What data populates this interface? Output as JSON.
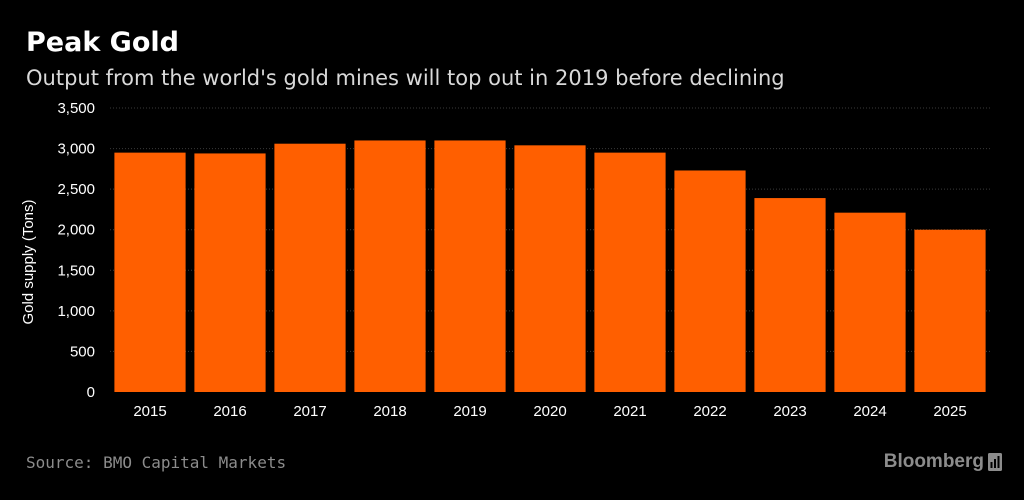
{
  "header": {
    "title": "Peak Gold",
    "subtitle": "Output from the world's gold mines will top out in 2019 before declining"
  },
  "footer": {
    "source": "Source: BMO Capital Markets",
    "brand": "Bloomberg",
    "brand_icon": "bloomberg-terminal-icon"
  },
  "colors": {
    "background": "#000000",
    "bar": "#ff5f00",
    "text": "#ffffff",
    "muted": "#8c8c8c",
    "grid": "#3a3a3a"
  },
  "chart_data": {
    "type": "bar",
    "title": "Peak Gold",
    "subtitle": "Output from the world's gold mines will top out in 2019 before declining",
    "xlabel": "",
    "ylabel": "Gold supply (Tons)",
    "categories": [
      "2015",
      "2016",
      "2017",
      "2018",
      "2019",
      "2020",
      "2021",
      "2022",
      "2023",
      "2024",
      "2025"
    ],
    "values": [
      2950,
      2940,
      3060,
      3100,
      3100,
      3040,
      2950,
      2730,
      2390,
      2210,
      2000
    ],
    "ylim": [
      0,
      3500
    ],
    "yticks": [
      0,
      500,
      1000,
      1500,
      2000,
      2500,
      3000,
      3500
    ],
    "ytick_labels": [
      "0",
      "500",
      "1,000",
      "1,500",
      "2,000",
      "2,500",
      "3,000",
      "3,500"
    ],
    "grid": true,
    "legend": "none"
  }
}
